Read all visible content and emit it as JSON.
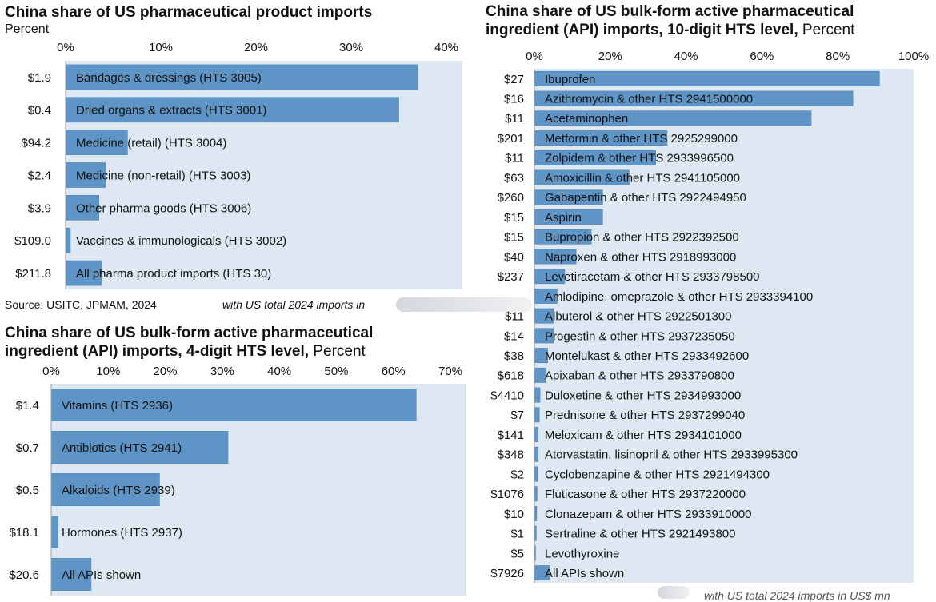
{
  "colors": {
    "panel_bg": "#dde8f3",
    "bar": "#5e95c6",
    "bar_edge": "#4f84b5",
    "axis": "#999999"
  },
  "panel1": {
    "title": "China share of US pharmaceutical product imports",
    "subtitle": "Percent",
    "source": "Source: USITC, JPMAM, 2024",
    "note": "with US total 2024 imports in"
  },
  "panel2": {
    "title_line1": "China share of US bulk-form active pharmaceutical",
    "title_line2": "ingredient (API) imports, 4-digit HTS level,",
    "title_unit": "Percent"
  },
  "panel3": {
    "title_line1": "China share of US bulk-form active pharmaceutical",
    "title_line2": "ingredient (API) imports, 10-digit HTS level,",
    "title_unit": "Percent",
    "note": "with US total 2024 imports in US$ mn"
  },
  "chart_data": [
    {
      "type": "bar",
      "orientation": "horizontal",
      "title": "China share of US pharmaceutical product imports",
      "xlabel": "Percent",
      "xlim": [
        0,
        40
      ],
      "ticks": [
        "0%",
        "10%",
        "20%",
        "30%",
        "40%"
      ],
      "categories": [
        "Bandages & dressings (HTS 3005)",
        "Dried organs & extracts (HTS 3001)",
        "Medicine (retail) (HTS 3004)",
        "Medicine (non-retail) (HTS 3003)",
        "Other pharma goods (HTS 3006)",
        "Vaccines & immunologicals (HTS 3002)",
        "All pharma product imports (HTS 30)"
      ],
      "row_labels": [
        "$1.9",
        "$0.4",
        "$94.2",
        "$2.4",
        "$3.9",
        "$109.0",
        "$211.8"
      ],
      "values": [
        37,
        35,
        6.5,
        4.2,
        3.5,
        0.5,
        3.8
      ]
    },
    {
      "type": "bar",
      "orientation": "horizontal",
      "title": "China share of US bulk-form active pharmaceutical ingredient (API) imports, 4-digit HTS level",
      "xlabel": "Percent",
      "xlim": [
        0,
        70
      ],
      "ticks": [
        "0%",
        "10%",
        "20%",
        "30%",
        "40%",
        "50%",
        "60%",
        "70%"
      ],
      "categories": [
        "Vitamins (HTS 2936)",
        "Antibiotics (HTS 2941)",
        "Alkaloids (HTS 2939)",
        "Hormones (HTS 2937)",
        "All APIs shown"
      ],
      "row_labels": [
        "$1.4",
        "$0.7",
        "$0.5",
        "$18.1",
        "$20.6"
      ],
      "values": [
        64,
        31,
        19,
        1.2,
        7
      ]
    },
    {
      "type": "bar",
      "orientation": "horizontal",
      "title": "China share of US bulk-form active pharmaceutical ingredient (API) imports, 10-digit HTS level",
      "xlabel": "Percent",
      "xlim": [
        0,
        100
      ],
      "ticks": [
        "0%",
        "20%",
        "40%",
        "60%",
        "80%",
        "100%"
      ],
      "categories": [
        "Ibuprofen",
        "Azithromycin & other HTS 2941500000",
        "Acetaminophen",
        "Metformin & other HTS 2925299000",
        "Zolpidem & other HTS 2933996500",
        "Amoxicillin & other HTS 2941105000",
        "Gabapentin & other HTS 2922494950",
        "Aspirin",
        "Bupropion & other HTS 2922392500",
        "Naproxen & other HTS 2918993000",
        "Levetiracetam & other HTS 2933798500",
        "Amlodipine, omeprazole & other HTS 2933394100",
        "Albuterol & other HTS 2922501300",
        "Progestin & other HTS 2937235050",
        "Montelukast & other HTS 2933492600",
        "Apixaban & other HTS 2933790800",
        "Duloxetine & other HTS 2934993000",
        "Prednisone & other HTS 2937299040",
        "Meloxicam & other HTS 2934101000",
        "Atorvastatin, lisinopril & other HTS 2933995300",
        "Cyclobenzapine & other HTS 2921494300",
        "Fluticasone & other HTS 2937220000",
        "Clonazepam & other HTS 2933910000",
        "Sertraline & other HTS 2921493800",
        "Levothyroxine",
        "All APIs shown"
      ],
      "row_labels": [
        "$27",
        "$16",
        "$11",
        "$201",
        "$11",
        "$63",
        "$260",
        "$15",
        "$15",
        "$40",
        "$237",
        "",
        "$11",
        "$14",
        "$38",
        "$618",
        "$4410",
        "$7",
        "$141",
        "$348",
        "$2",
        "$1076",
        "$10",
        "$1",
        "$5",
        "$7926"
      ],
      "values": [
        91,
        84,
        73,
        35,
        32,
        25,
        18,
        18,
        15,
        11,
        8,
        6,
        5,
        5,
        3.5,
        3,
        1.5,
        1.3,
        1,
        1,
        0.8,
        0.7,
        0.6,
        0.5,
        0.3,
        4
      ]
    }
  ]
}
